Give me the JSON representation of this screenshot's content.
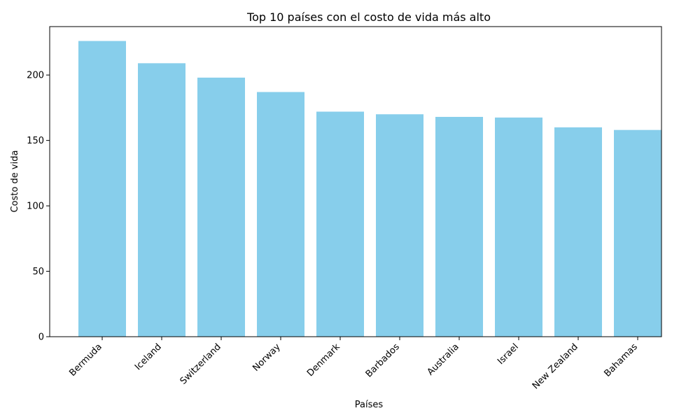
{
  "chart_data": {
    "type": "bar",
    "title": "Top 10 países con el costo de vida más alto",
    "xlabel": "Países",
    "ylabel": "Costo de vida",
    "categories": [
      "Bermuda",
      "Iceland",
      "Switzerland",
      "Norway",
      "Denmark",
      "Barbados",
      "Australia",
      "Israel",
      "New Zealand",
      "Bahamas"
    ],
    "values": [
      226,
      209,
      198,
      187,
      172,
      170,
      168,
      167.5,
      160,
      158
    ],
    "ylim": [
      0,
      237
    ],
    "yticks": [
      0,
      50,
      100,
      150,
      200
    ],
    "bar_color": "#87ceeb",
    "grid": false,
    "legend": "none"
  }
}
